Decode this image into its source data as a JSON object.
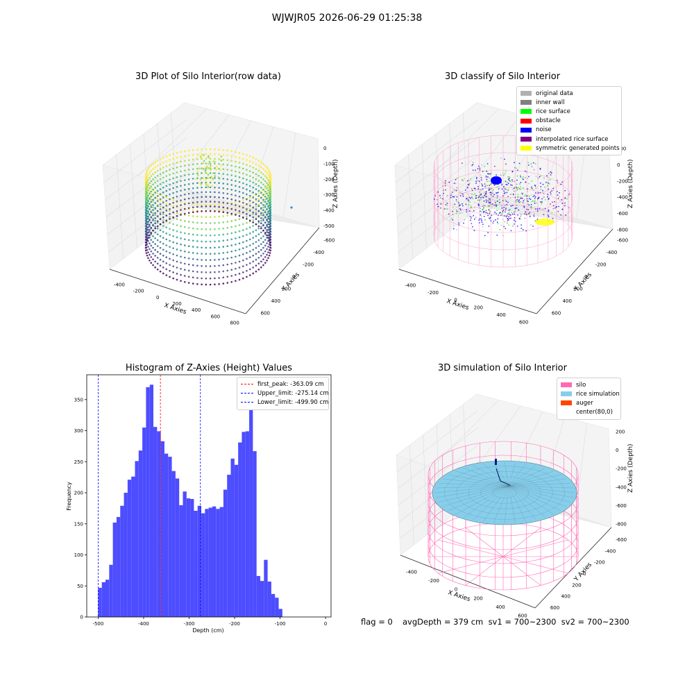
{
  "figure": {
    "suptitle": "WJWJR05 2026-06-29 01:25:38"
  },
  "panel1": {
    "title": "3D Plot of Silo Interior(row data)",
    "xlabel": "X Axies",
    "ylabel": "Y Axies",
    "zlabel": "Z Axies (Depth)",
    "xticks": [
      "-400",
      "-200",
      "0",
      "200",
      "400",
      "600",
      "800"
    ],
    "yticks": [
      "-600",
      "-400",
      "-200",
      "0",
      "200",
      "400",
      "600"
    ],
    "zticks": [
      "0",
      "-100",
      "-200",
      "-300",
      "-400",
      "-500"
    ]
  },
  "panel2": {
    "title": "3D classify of Silo Interior",
    "xlabel": "X Axies",
    "ylabel": "Y Axies",
    "zlabel": "Z Axies (Depth)",
    "xticks": [
      "-400",
      "-200",
      "0",
      "200",
      "400",
      "600"
    ],
    "yticks": [
      "-600",
      "-400",
      "-200",
      "0",
      "200",
      "400",
      "600"
    ],
    "zticks": [
      "200",
      "0",
      "-200",
      "-400",
      "-600",
      "-800"
    ],
    "legend": [
      {
        "label": "original data",
        "color": "#b0b0b0"
      },
      {
        "label": "inner wall",
        "color": "#808080"
      },
      {
        "label": "rice surface",
        "color": "#00ff00"
      },
      {
        "label": "obstacle",
        "color": "#ff0000"
      },
      {
        "label": "noise",
        "color": "#0000ff"
      },
      {
        "label": "interpolated rice surface",
        "color": "#800080"
      },
      {
        "label": "symmetric generated points",
        "color": "#ffff00"
      }
    ]
  },
  "panel4": {
    "title": "3D simulation of Silo Interior",
    "xlabel": "X Axies",
    "ylabel": "Y Axies",
    "zlabel": "Z Axies (Depth)",
    "xticks": [
      "-400",
      "-200",
      "0",
      "200",
      "400",
      "600"
    ],
    "yticks": [
      "-600",
      "-400",
      "-200",
      "0",
      "200",
      "400",
      "600"
    ],
    "zticks": [
      "200",
      "0",
      "-200",
      "-400",
      "-600",
      "-800"
    ],
    "legend": [
      {
        "label": "silo",
        "color": "#ff69b4"
      },
      {
        "label": "rice simulation",
        "color": "#87ceeb"
      },
      {
        "label": "auger",
        "color": "#ff4500"
      },
      {
        "label": "center(80,0)",
        "color": ""
      }
    ]
  },
  "footer": {
    "flag": "flag = 0",
    "stats": "avgDepth = 379 cm  sv1 = 700~2300  sv2 = 700~2300"
  },
  "chart_data": [
    {
      "type": "bar",
      "title": "Histogram of Z-Axies (Height) Values",
      "xlabel": "Depth (cm)",
      "ylabel": "Frequency",
      "xlim": [
        -525,
        12
      ],
      "ylim": [
        0,
        390
      ],
      "bin_start": -500,
      "bin_width": 8.1,
      "xticks": [
        -500,
        -400,
        -300,
        -200,
        -100,
        0
      ],
      "yticks": [
        0,
        50,
        100,
        150,
        200,
        250,
        300,
        350
      ],
      "bar_color": "#4d4dff",
      "values": [
        47,
        56,
        60,
        84,
        152,
        161,
        179,
        200,
        221,
        226,
        251,
        268,
        305,
        370,
        374,
        306,
        299,
        283,
        263,
        258,
        235,
        223,
        180,
        202,
        191,
        190,
        171,
        179,
        167,
        174,
        176,
        178,
        174,
        177,
        205,
        229,
        255,
        245,
        281,
        298,
        299,
        340,
        267,
        66,
        58,
        92,
        57,
        37,
        31,
        13
      ],
      "lines": [
        {
          "label": "first_peak: -363.09 cm",
          "x": -363.09,
          "color": "#ff0000"
        },
        {
          "label": "Upper_limit: -275.14 cm",
          "x": -275.14,
          "color": "#0000ff"
        },
        {
          "label": "Lower_limit: -499.90 cm",
          "x": -499.9,
          "color": "#0000ff"
        }
      ],
      "legend_position": "upper right"
    }
  ]
}
